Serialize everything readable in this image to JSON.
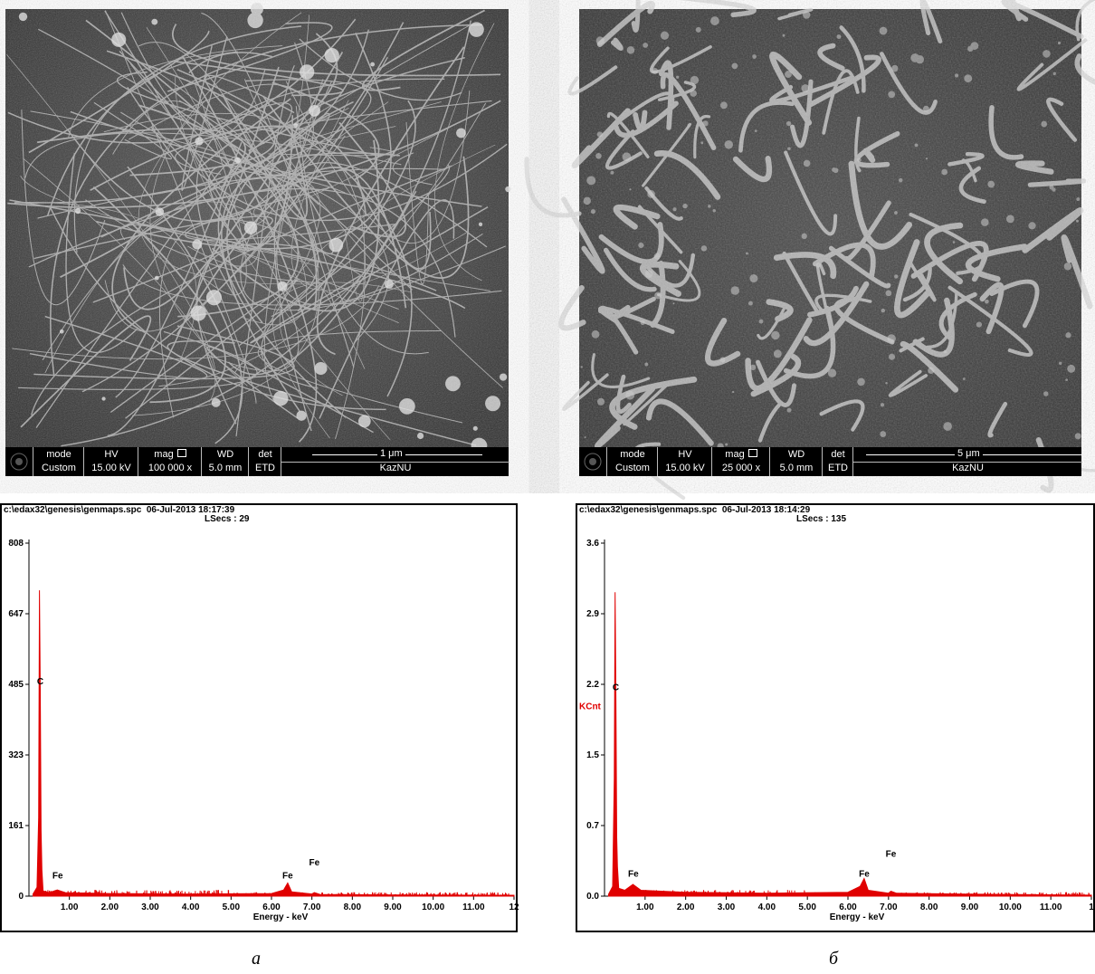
{
  "panels": [
    {
      "caption": "а",
      "sem": {
        "mode_label": "mode",
        "mode_value": "Custom",
        "hv_label": "HV",
        "hv_value": "15.00 kV",
        "mag_label": "mag",
        "mag_value": "100 000 x",
        "wd_label": "WD",
        "wd_value": "5.0 mm",
        "det_label": "det",
        "det_value": "ETD",
        "scale_label": "1 μm",
        "institution": "KazNU"
      },
      "eds": {
        "file": "c:\\edax32\\genesis\\genmaps.spc",
        "datetime": "06-Jul-2013 18:17:39",
        "lsecs": "LSecs :  29",
        "xlabel": "Energy - keV",
        "ylabel": "",
        "y_ticks": [
          "808",
          "647",
          "485",
          "323",
          "161",
          "0"
        ],
        "x_ticks": [
          "1.00",
          "2.00",
          "3.00",
          "4.00",
          "5.00",
          "6.00",
          "7.00",
          "8.00",
          "9.00",
          "10.00",
          "11.00",
          "12"
        ]
      }
    },
    {
      "caption": "б",
      "sem": {
        "mode_label": "mode",
        "mode_value": "Custom",
        "hv_label": "HV",
        "hv_value": "15.00 kV",
        "mag_label": "mag",
        "mag_value": "25 000 x",
        "wd_label": "WD",
        "wd_value": "5.0 mm",
        "det_label": "det",
        "det_value": "ETD",
        "scale_label": "5 μm",
        "institution": "KazNU"
      },
      "eds": {
        "file": "c:\\edax32\\genesis\\genmaps.spc",
        "datetime": "06-Jul-2013 18:14:29",
        "lsecs": "LSecs :  135",
        "xlabel": "Energy - keV",
        "ylabel": "KCnt",
        "y_ticks": [
          "3.6",
          "2.9",
          "2.2",
          "1.5",
          "0.7",
          "0.0"
        ],
        "x_ticks": [
          "1.00",
          "2.00",
          "3.00",
          "4.00",
          "5.00",
          "6.00",
          "7.00",
          "8.00",
          "9.00",
          "10.00",
          "11.00",
          "1"
        ]
      }
    }
  ],
  "chart_data": [
    {
      "type": "line",
      "title": "",
      "xlabel": "Energy - keV",
      "ylabel": "",
      "xlim": [
        0,
        12
      ],
      "ylim": [
        0,
        808
      ],
      "series": [
        {
          "x": [
            0.1,
            0.2,
            0.24,
            0.26,
            0.28,
            0.3,
            0.32,
            0.35,
            0.5,
            0.7,
            0.9,
            2.0,
            4.0,
            6.0,
            6.3,
            6.4,
            6.5,
            7.0,
            7.06,
            7.2,
            9.0,
            12.0
          ],
          "y": [
            5,
            20,
            180,
            700,
            470,
            150,
            60,
            12,
            8,
            14,
            8,
            6,
            5,
            6,
            14,
            30,
            10,
            5,
            8,
            4,
            3,
            2
          ]
        }
      ],
      "annotations": [
        {
          "text": "C",
          "x": 0.28,
          "y": 485
        },
        {
          "text": "Fe",
          "x": 0.71,
          "y": 40
        },
        {
          "text": "Fe",
          "x": 6.4,
          "y": 40
        },
        {
          "text": "Fe",
          "x": 7.06,
          "y": 70
        }
      ]
    },
    {
      "type": "line",
      "title": "",
      "xlabel": "Energy - keV",
      "ylabel": "KCnt",
      "xlim": [
        0,
        12
      ],
      "ylim": [
        0,
        3.6
      ],
      "series": [
        {
          "x": [
            0.1,
            0.2,
            0.24,
            0.26,
            0.28,
            0.3,
            0.32,
            0.35,
            0.5,
            0.7,
            0.9,
            2.0,
            4.0,
            6.0,
            6.3,
            6.4,
            6.5,
            7.0,
            7.06,
            7.2,
            9.0,
            12.0
          ],
          "y": [
            0.02,
            0.1,
            1.2,
            3.1,
            2.0,
            0.6,
            0.3,
            0.08,
            0.06,
            0.12,
            0.06,
            0.04,
            0.03,
            0.04,
            0.1,
            0.18,
            0.06,
            0.03,
            0.05,
            0.03,
            0.02,
            0.01
          ]
        }
      ],
      "annotations": [
        {
          "text": "C",
          "x": 0.28,
          "y": 2.1
        },
        {
          "text": "Fe",
          "x": 0.71,
          "y": 0.2
        },
        {
          "text": "Fe",
          "x": 6.4,
          "y": 0.2
        },
        {
          "text": "Fe",
          "x": 7.06,
          "y": 0.4
        }
      ]
    }
  ]
}
